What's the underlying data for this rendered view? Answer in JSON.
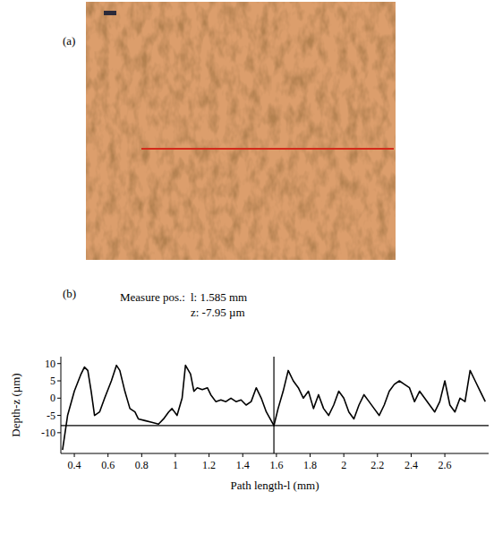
{
  "chart_data": {
    "type": "line",
    "panel_labels": [
      "(a)",
      "(b)"
    ],
    "title": "Measure pos.:",
    "annotations": [
      "l: 1.585 mm",
      "z: -7.95 µm"
    ],
    "cursor": {
      "x": 1.585,
      "z": -7.95
    },
    "x_label": "Path length-l (mm)",
    "y_label": "Depth-z (µm)",
    "x": [
      0.33,
      0.36,
      0.4,
      0.44,
      0.46,
      0.48,
      0.5,
      0.52,
      0.55,
      0.58,
      0.62,
      0.65,
      0.67,
      0.7,
      0.73,
      0.76,
      0.78,
      0.82,
      0.86,
      0.9,
      0.93,
      0.96,
      0.98,
      1.01,
      1.04,
      1.06,
      1.09,
      1.11,
      1.13,
      1.16,
      1.19,
      1.21,
      1.24,
      1.27,
      1.3,
      1.33,
      1.36,
      1.39,
      1.42,
      1.45,
      1.48,
      1.51,
      1.54,
      1.585,
      1.61,
      1.64,
      1.67,
      1.7,
      1.73,
      1.76,
      1.79,
      1.82,
      1.85,
      1.88,
      1.91,
      1.94,
      1.97,
      2.0,
      2.03,
      2.06,
      2.09,
      2.12,
      2.15,
      2.18,
      2.21,
      2.24,
      2.27,
      2.3,
      2.33,
      2.36,
      2.39,
      2.42,
      2.45,
      2.48,
      2.51,
      2.54,
      2.57,
      2.6,
      2.63,
      2.66,
      2.69,
      2.72,
      2.75,
      2.78,
      2.81,
      2.84
    ],
    "values": [
      -15,
      -5,
      2,
      7,
      9,
      8,
      2,
      -5,
      -4,
      0,
      5,
      9.5,
      8,
      2,
      -3,
      -4,
      -6,
      -6.5,
      -7,
      -7.5,
      -6,
      -4,
      -3,
      -5,
      0,
      9.5,
      7,
      2,
      3,
      2.5,
      3,
      1,
      -1,
      -0.5,
      -1,
      0,
      -1,
      -0.5,
      -2,
      -1,
      3,
      0,
      -4,
      -7.95,
      -3,
      2,
      8,
      5,
      3,
      0,
      2,
      -3,
      1,
      -3,
      -5,
      -2,
      2,
      0,
      -4,
      -6,
      -2,
      1,
      -1,
      -3,
      -5,
      -2,
      2,
      4,
      5,
      4,
      3,
      -1,
      2,
      0,
      -2,
      -4,
      -1,
      5,
      -2,
      -4,
      0,
      -1,
      8,
      5,
      2,
      -1
    ],
    "color": "#000000",
    "xlim": [
      0.32,
      2.86
    ],
    "ylim": [
      -16,
      12
    ],
    "xticks": [
      0.4,
      0.6,
      0.8,
      1,
      1.2,
      1.4,
      1.6,
      1.8,
      2,
      2.2,
      2.4,
      2.6
    ],
    "yticks": [
      -10,
      -5,
      0,
      5,
      10
    ],
    "grid": false
  }
}
